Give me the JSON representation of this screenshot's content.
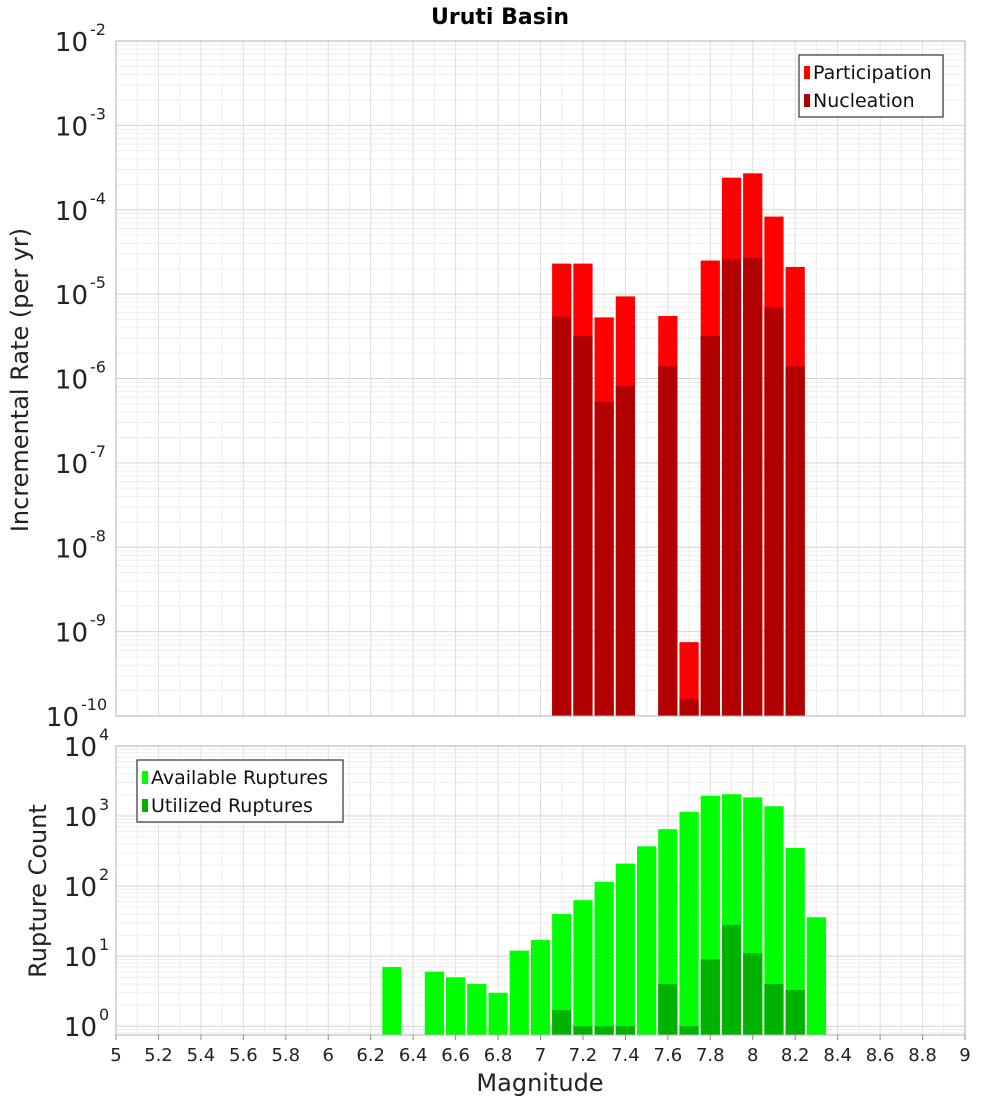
{
  "chart_data": [
    {
      "type": "bar",
      "title": "Uruti Basin",
      "ylabel": "Incremental Rate (per yr)",
      "xlabel": "",
      "yscale": "log",
      "ylim": [
        1e-10,
        0.01
      ],
      "xlim": [
        5,
        9
      ],
      "yticks": [
        {
          "base": "10",
          "exp": "-10"
        },
        {
          "base": "10",
          "exp": "-9"
        },
        {
          "base": "10",
          "exp": "-8"
        },
        {
          "base": "10",
          "exp": "-7"
        },
        {
          "base": "10",
          "exp": "-6"
        },
        {
          "base": "10",
          "exp": "-5"
        },
        {
          "base": "10",
          "exp": "-4"
        },
        {
          "base": "10",
          "exp": "-3"
        },
        {
          "base": "10",
          "exp": "-2"
        }
      ],
      "grid": true,
      "legend_position": "top-right",
      "x": [
        7.1,
        7.2,
        7.3,
        7.4,
        7.6,
        7.7,
        7.8,
        7.9,
        8.0,
        8.1,
        8.2
      ],
      "series": [
        {
          "name": "Participation",
          "color": "#ff0000",
          "values": [
            2.3e-05,
            2.3e-05,
            5.3e-06,
            9.4e-06,
            5.5e-06,
            7.5e-10,
            2.5e-05,
            0.00024,
            0.00027,
            8.3e-05,
            2.1e-05
          ]
        },
        {
          "name": "Nucleation",
          "color": "#b20000",
          "values": [
            5.4e-06,
            3.2e-06,
            5.3e-07,
            8.2e-07,
            1.4e-06,
            1.6e-10,
            3.2e-06,
            2.6e-05,
            2.7e-05,
            7e-06,
            1.4e-06
          ]
        }
      ]
    },
    {
      "type": "bar",
      "title": "",
      "ylabel": "Rupture Count",
      "xlabel": "Magnitude",
      "yscale": "log",
      "ylim": [
        0.75,
        10000
      ],
      "xlim": [
        5,
        9
      ],
      "yticks": [
        {
          "base": "10",
          "exp": "0"
        },
        {
          "base": "10",
          "exp": "1"
        },
        {
          "base": "10",
          "exp": "2"
        },
        {
          "base": "10",
          "exp": "3"
        },
        {
          "base": "10",
          "exp": "4"
        }
      ],
      "xticks": [
        "5",
        "5.2",
        "5.4",
        "5.6",
        "5.8",
        "6",
        "6.2",
        "6.4",
        "6.6",
        "6.8",
        "7",
        "7.2",
        "7.4",
        "7.6",
        "7.8",
        "8",
        "8.2",
        "8.4",
        "8.6",
        "8.8",
        "9"
      ],
      "grid": true,
      "legend_position": "top-left",
      "x": [
        6.3,
        6.5,
        6.6,
        6.7,
        6.8,
        6.9,
        7.0,
        7.1,
        7.2,
        7.3,
        7.4,
        7.5,
        7.6,
        7.7,
        7.8,
        7.9,
        8.0,
        8.1,
        8.2,
        8.3
      ],
      "series": [
        {
          "name": "Available Ruptures",
          "color": "#00ff00",
          "values": [
            7,
            6,
            5,
            4,
            3,
            12,
            17,
            40,
            63,
            115,
            210,
            370,
            650,
            1150,
            1950,
            2050,
            1850,
            1380,
            350,
            36
          ]
        },
        {
          "name": "Utilized Ruptures",
          "color": "#00b200",
          "values": [
            null,
            null,
            null,
            null,
            null,
            null,
            null,
            1.7,
            1,
            1,
            1,
            null,
            4,
            1,
            9,
            28,
            11,
            4,
            3.3,
            null
          ]
        }
      ]
    }
  ]
}
